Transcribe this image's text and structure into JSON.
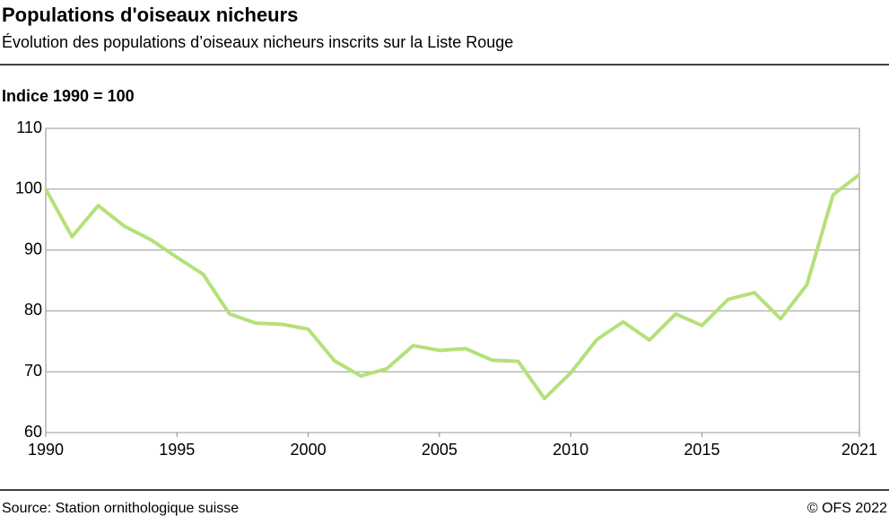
{
  "chart_data": {
    "type": "line",
    "title": "Populations d'oiseaux nicheurs",
    "subtitle": "Évolution des populations d’oiseaux nicheurs inscrits sur la Liste Rouge",
    "y_label": "Indice 1990 = 100",
    "x": [
      1990,
      1991,
      1992,
      1993,
      1994,
      1995,
      1996,
      1997,
      1998,
      1999,
      2000,
      2001,
      2002,
      2003,
      2004,
      2005,
      2006,
      2007,
      2008,
      2009,
      2010,
      2011,
      2012,
      2013,
      2014,
      2015,
      2016,
      2017,
      2018,
      2019,
      2020,
      2021
    ],
    "values": [
      100,
      92.2,
      97.3,
      93.9,
      91.7,
      88.8,
      86,
      79.5,
      78,
      77.8,
      77,
      71.8,
      69.3,
      70.5,
      74.3,
      73.5,
      73.8,
      71.9,
      71.7,
      65.6,
      69.8,
      75.3,
      78.2,
      75.2,
      79.5,
      77.6,
      81.9,
      83,
      78.7,
      84.3,
      99.1,
      102.4
    ],
    "color": "#b5e07a",
    "xlim": [
      1990,
      2021
    ],
    "xticks": [
      1990,
      1995,
      2000,
      2005,
      2010,
      2015,
      2021
    ],
    "ylim": [
      60,
      110
    ],
    "yticks": [
      60,
      70,
      80,
      90,
      100,
      110
    ],
    "grid": true,
    "source": "Source: Station ornithologique suisse",
    "copyright": "© OFS 2022"
  }
}
